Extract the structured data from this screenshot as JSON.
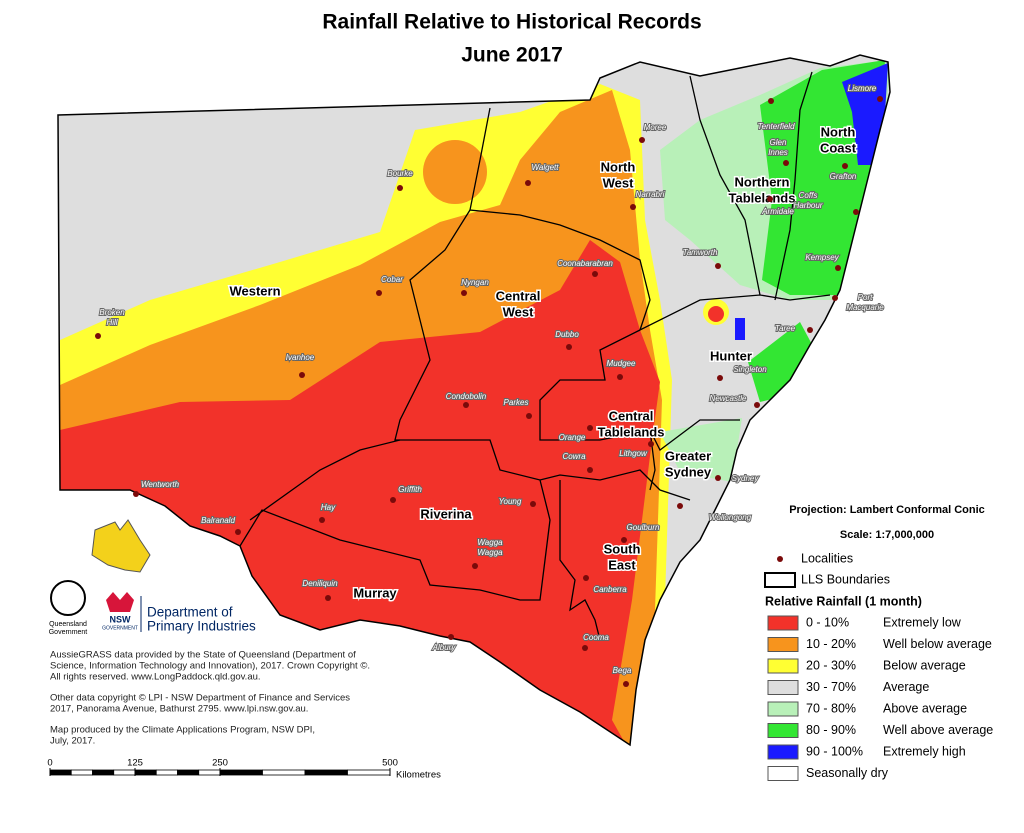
{
  "title": [
    "Rainfall Relative to Historical Records",
    "June 2017"
  ],
  "regions": [
    {
      "lines": [
        "Western"
      ]
    },
    {
      "lines": [
        "North",
        "West"
      ]
    },
    {
      "lines": [
        "Northern",
        "Tablelands"
      ]
    },
    {
      "lines": [
        "North",
        "Coast"
      ]
    },
    {
      "lines": [
        "Central",
        "West"
      ]
    },
    {
      "lines": [
        "Hunter"
      ]
    },
    {
      "lines": [
        "Central",
        "Tablelands"
      ]
    },
    {
      "lines": [
        "Greater",
        "Sydney"
      ]
    },
    {
      "lines": [
        "Riverina"
      ]
    },
    {
      "lines": [
        "South",
        "East"
      ]
    },
    {
      "lines": [
        "Murray"
      ]
    }
  ],
  "localities": [
    {
      "lines": [
        "Moree"
      ]
    },
    {
      "lines": [
        "Tenterfield"
      ]
    },
    {
      "lines": [
        "Lismore"
      ]
    },
    {
      "lines": [
        "Glen",
        "Innes"
      ]
    },
    {
      "lines": [
        "Grafton"
      ]
    },
    {
      "lines": [
        "Bourke"
      ]
    },
    {
      "lines": [
        "Walgett"
      ]
    },
    {
      "lines": [
        "Narrabri"
      ]
    },
    {
      "lines": [
        "Armidale"
      ]
    },
    {
      "lines": [
        "Coffs",
        "Harbour"
      ]
    },
    {
      "lines": [
        "Tamworth"
      ]
    },
    {
      "lines": [
        "Kempsey"
      ]
    },
    {
      "lines": [
        "Cobar"
      ]
    },
    {
      "lines": [
        "Nyngan"
      ]
    },
    {
      "lines": [
        "Coonabarabran"
      ]
    },
    {
      "lines": [
        "Port",
        "Macquarie"
      ]
    },
    {
      "lines": [
        "Broken",
        "Hill"
      ]
    },
    {
      "lines": [
        "Dubbo"
      ]
    },
    {
      "lines": [
        "Taree"
      ]
    },
    {
      "lines": [
        "Mudgee"
      ]
    },
    {
      "lines": [
        "Singleton"
      ]
    },
    {
      "lines": [
        "Ivanhoe"
      ]
    },
    {
      "lines": [
        "Condobolin"
      ]
    },
    {
      "lines": [
        "Parkes"
      ]
    },
    {
      "lines": [
        "Newcastle"
      ]
    },
    {
      "lines": [
        "Orange"
      ]
    },
    {
      "lines": [
        "Lithgow"
      ]
    },
    {
      "lines": [
        "Cowra"
      ]
    },
    {
      "lines": [
        "Sydney"
      ]
    },
    {
      "lines": [
        "Wentworth"
      ]
    },
    {
      "lines": [
        "Griffith"
      ]
    },
    {
      "lines": [
        "Young"
      ]
    },
    {
      "lines": [
        "Wollongong"
      ]
    },
    {
      "lines": [
        "Hay"
      ]
    },
    {
      "lines": [
        "Goulburn"
      ]
    },
    {
      "lines": [
        "Balranald"
      ]
    },
    {
      "lines": [
        "Wagga",
        "Wagga"
      ]
    },
    {
      "lines": [
        "Deniliquin"
      ]
    },
    {
      "lines": [
        "Canberra"
      ]
    },
    {
      "lines": [
        "Cooma"
      ]
    },
    {
      "lines": [
        "Albury"
      ]
    },
    {
      "lines": [
        "Bega"
      ]
    }
  ],
  "legend": {
    "projection": "Projection: Lambert Conformal Conic",
    "scale": "Scale: 1:7,000,000",
    "localities": "Localities",
    "boundaries": "LLS Boundaries",
    "heading": "Relative Rainfall (1 month)",
    "classes": [
      {
        "range": "0 -  10%",
        "description": "Extremely low",
        "color": "#f2322a"
      },
      {
        "range": "10 -  20%",
        "description": "Well below average",
        "color": "#f7941d"
      },
      {
        "range": "20 -  30%",
        "description": "Below average",
        "color": "#ffff33"
      },
      {
        "range": "30 -  70%",
        "description": "Average",
        "color": "#dedede"
      },
      {
        "range": "70 -  80%",
        "description": "Above average",
        "color": "#b8f0b8"
      },
      {
        "range": "80 -  90%",
        "description": "Well above average",
        "color": "#33e633"
      },
      {
        "range": "90 - 100%",
        "description": "Extremely high",
        "color": "#1a1aff"
      },
      {
        "range": "Seasonally dry",
        "description": null,
        "color": "#ffffff"
      }
    ]
  },
  "logos": {
    "queensland": [
      "Queensland",
      "Government"
    ],
    "nsw": "NSW",
    "nsw_sub": "GOVERNMENT",
    "dpi": [
      "Department of",
      "Primary Industries"
    ]
  },
  "credits": [
    [
      "AussieGRASS data provided by the State of Queensland (Department of",
      "Science, Information Technology and Innovation), 2017. Crown Copyright ©.",
      "All rights reserved. www.LongPaddock.qld.gov.au."
    ],
    [
      "Other data copyright © LPI - NSW Department of Finance and Services",
      "2017, Panorama Avenue, Bathurst 2795. www.lpi.nsw.gov.au."
    ],
    [
      "Map produced by the Climate Applications Program, NSW DPI,",
      "July, 2017."
    ]
  ],
  "scale_bar": {
    "ticks": [
      0,
      125,
      250,
      500
    ],
    "unit": "Kilometres"
  }
}
